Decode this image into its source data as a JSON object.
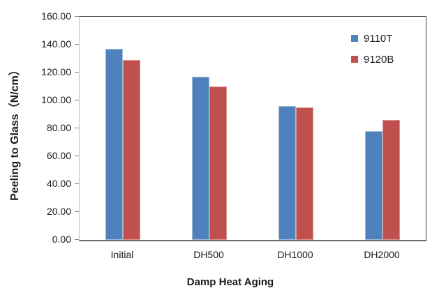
{
  "chart_data": {
    "type": "bar",
    "title": "",
    "xlabel": "Damp Heat Aging",
    "ylabel": "Peeling to Glass（N/cm）",
    "categories": [
      "Initial",
      "DH500",
      "DH1000",
      "DH2000"
    ],
    "series": [
      {
        "name": "9110T",
        "color": "#4F81BD",
        "edge_color": "#A3BEDC",
        "values": [
          137,
          117,
          96,
          78
        ]
      },
      {
        "name": "9120B",
        "color": "#C0504D",
        "edge_color": "#DA9694",
        "values": [
          129,
          110,
          95,
          86
        ]
      }
    ],
    "ylim": [
      0,
      160
    ],
    "ytick_values": [
      0,
      20,
      40,
      60,
      80,
      100,
      120,
      140,
      160
    ],
    "ytick_labels": [
      "0.00",
      "20.00",
      "40.00",
      "60.00",
      "80.00",
      "100.00",
      "120.00",
      "140.00",
      "160.00"
    ],
    "grid": false,
    "legend_position": "top-right",
    "axis_colors": {
      "frame_dark": "#404040",
      "frame_light": "#bfbfbf",
      "baseline": "#6e6e6e",
      "tick": "#808080"
    }
  }
}
